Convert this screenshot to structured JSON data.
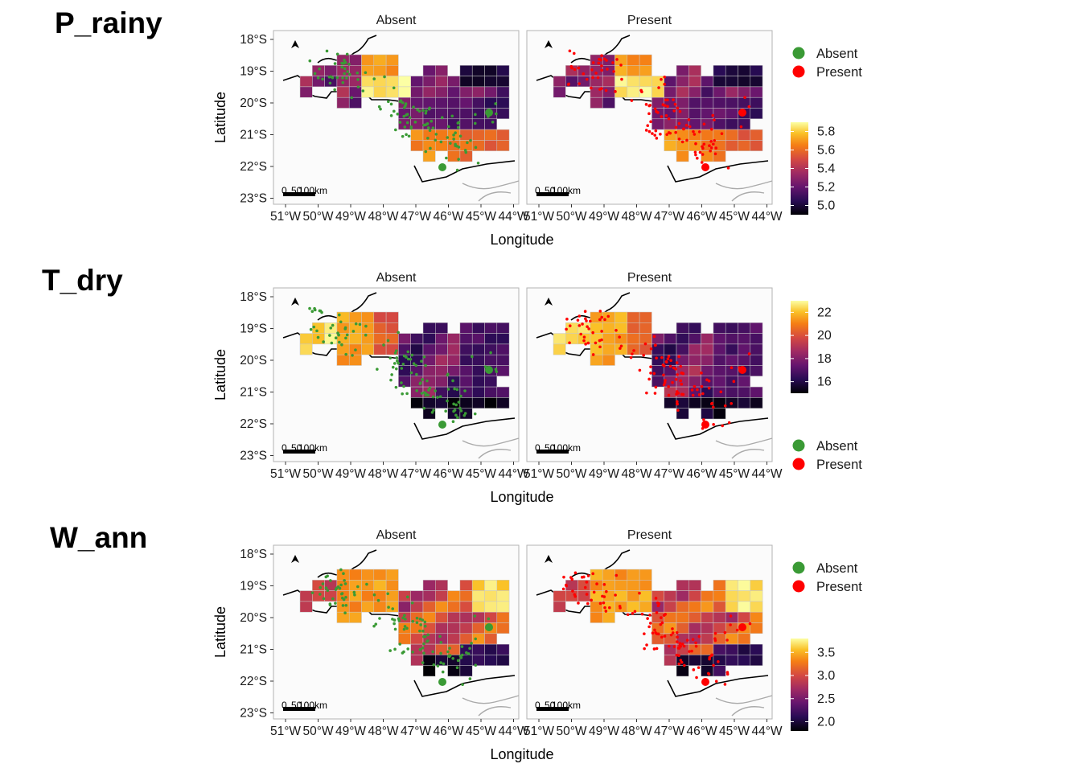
{
  "figure": {
    "rows": [
      {
        "title": "P_rainy",
        "colorbar": {
          "ticks": [
            5.0,
            5.2,
            5.4,
            5.6,
            5.8
          ],
          "range": [
            4.9,
            5.9
          ]
        },
        "legend_first": true
      },
      {
        "title": "T_dry",
        "colorbar": {
          "ticks": [
            16,
            18,
            20,
            22
          ],
          "range": [
            15,
            23
          ]
        },
        "legend_first": false
      },
      {
        "title": "W_ann",
        "colorbar": {
          "ticks": [
            2.0,
            2.5,
            3.0,
            3.5
          ],
          "range": [
            1.8,
            3.8
          ]
        },
        "legend_first": true
      }
    ],
    "facets": [
      "Absent",
      "Present"
    ],
    "xlabel": "Longitude",
    "ylabel": "Latitude",
    "xticks": [
      "51°W",
      "50°W",
      "49°W",
      "48°W",
      "47°W",
      "46°W",
      "45°W",
      "44°W"
    ],
    "yticks": [
      "18°S",
      "19°S",
      "20°S",
      "21°S",
      "22°S",
      "23°S"
    ],
    "scalebar": {
      "label0": "0",
      "label1": "50",
      "label2": "100km"
    },
    "north_arrow": "north-arrow-icon",
    "legend": {
      "items": [
        {
          "label": "Absent",
          "color": "#3a9a35"
        },
        {
          "label": "Present",
          "color": "#ff0000"
        }
      ]
    }
  },
  "chart_data": [
    {
      "type": "heatmap",
      "panel": "P_rainy",
      "facets": [
        "Absent",
        "Present"
      ],
      "xlabel": "Longitude",
      "ylabel": "Latitude",
      "xlim": [
        -51.3,
        -43.3
      ],
      "ylim": [
        -23.2,
        -17.8
      ],
      "fill_range": [
        4.9,
        5.9
      ],
      "points": "occurrence records"
    },
    {
      "type": "heatmap",
      "panel": "T_dry",
      "facets": [
        "Absent",
        "Present"
      ],
      "xlabel": "Longitude",
      "ylabel": "Latitude",
      "xlim": [
        -51.3,
        -43.3
      ],
      "ylim": [
        -23.2,
        -17.8
      ],
      "fill_range": [
        15,
        23
      ],
      "points": "occurrence records"
    },
    {
      "type": "heatmap",
      "panel": "W_ann",
      "facets": [
        "Absent",
        "Present"
      ],
      "xlabel": "Longitude",
      "ylabel": "Latitude",
      "xlim": [
        -51.3,
        -43.3
      ],
      "ylim": [
        -23.2,
        -17.8
      ],
      "fill_range": [
        1.8,
        3.8
      ],
      "points": "occurrence records"
    }
  ]
}
